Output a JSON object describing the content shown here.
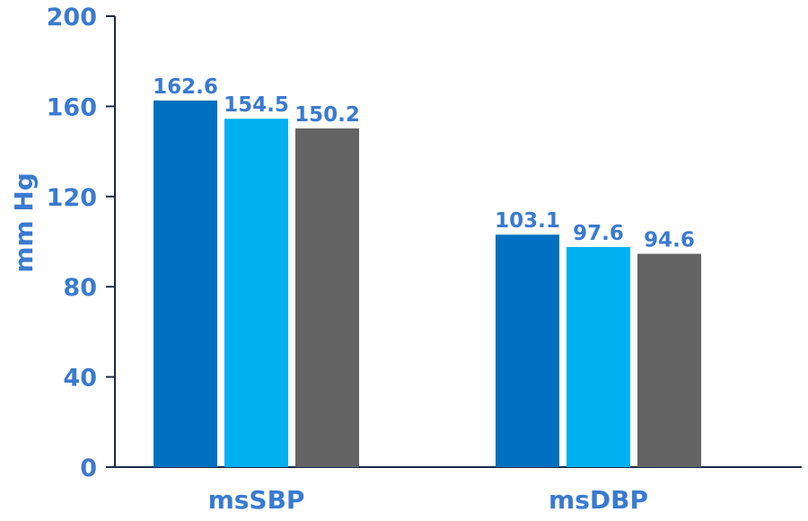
{
  "chart_data": {
    "type": "bar",
    "title": "",
    "xlabel": "",
    "ylabel": "mm Hg",
    "ylim": [
      0,
      200
    ],
    "yticks": [
      0,
      40,
      80,
      120,
      160,
      200
    ],
    "categories": [
      "msSBP",
      "msDBP"
    ],
    "series": [
      {
        "values": [
          162.6,
          103.1
        ],
        "color": "#0070c0"
      },
      {
        "values": [
          154.5,
          97.6
        ],
        "color": "#00b0f0"
      },
      {
        "values": [
          150.2,
          94.6
        ],
        "color": "#636363"
      }
    ],
    "data_labels": [
      [
        "162.6",
        "103.1"
      ],
      [
        "154.5",
        "97.6"
      ],
      [
        "150.2",
        "94.6"
      ]
    ],
    "grid": false,
    "legend": "none",
    "colors": {
      "text": "#3a7ad0",
      "axis": "#1a2a4a"
    }
  }
}
